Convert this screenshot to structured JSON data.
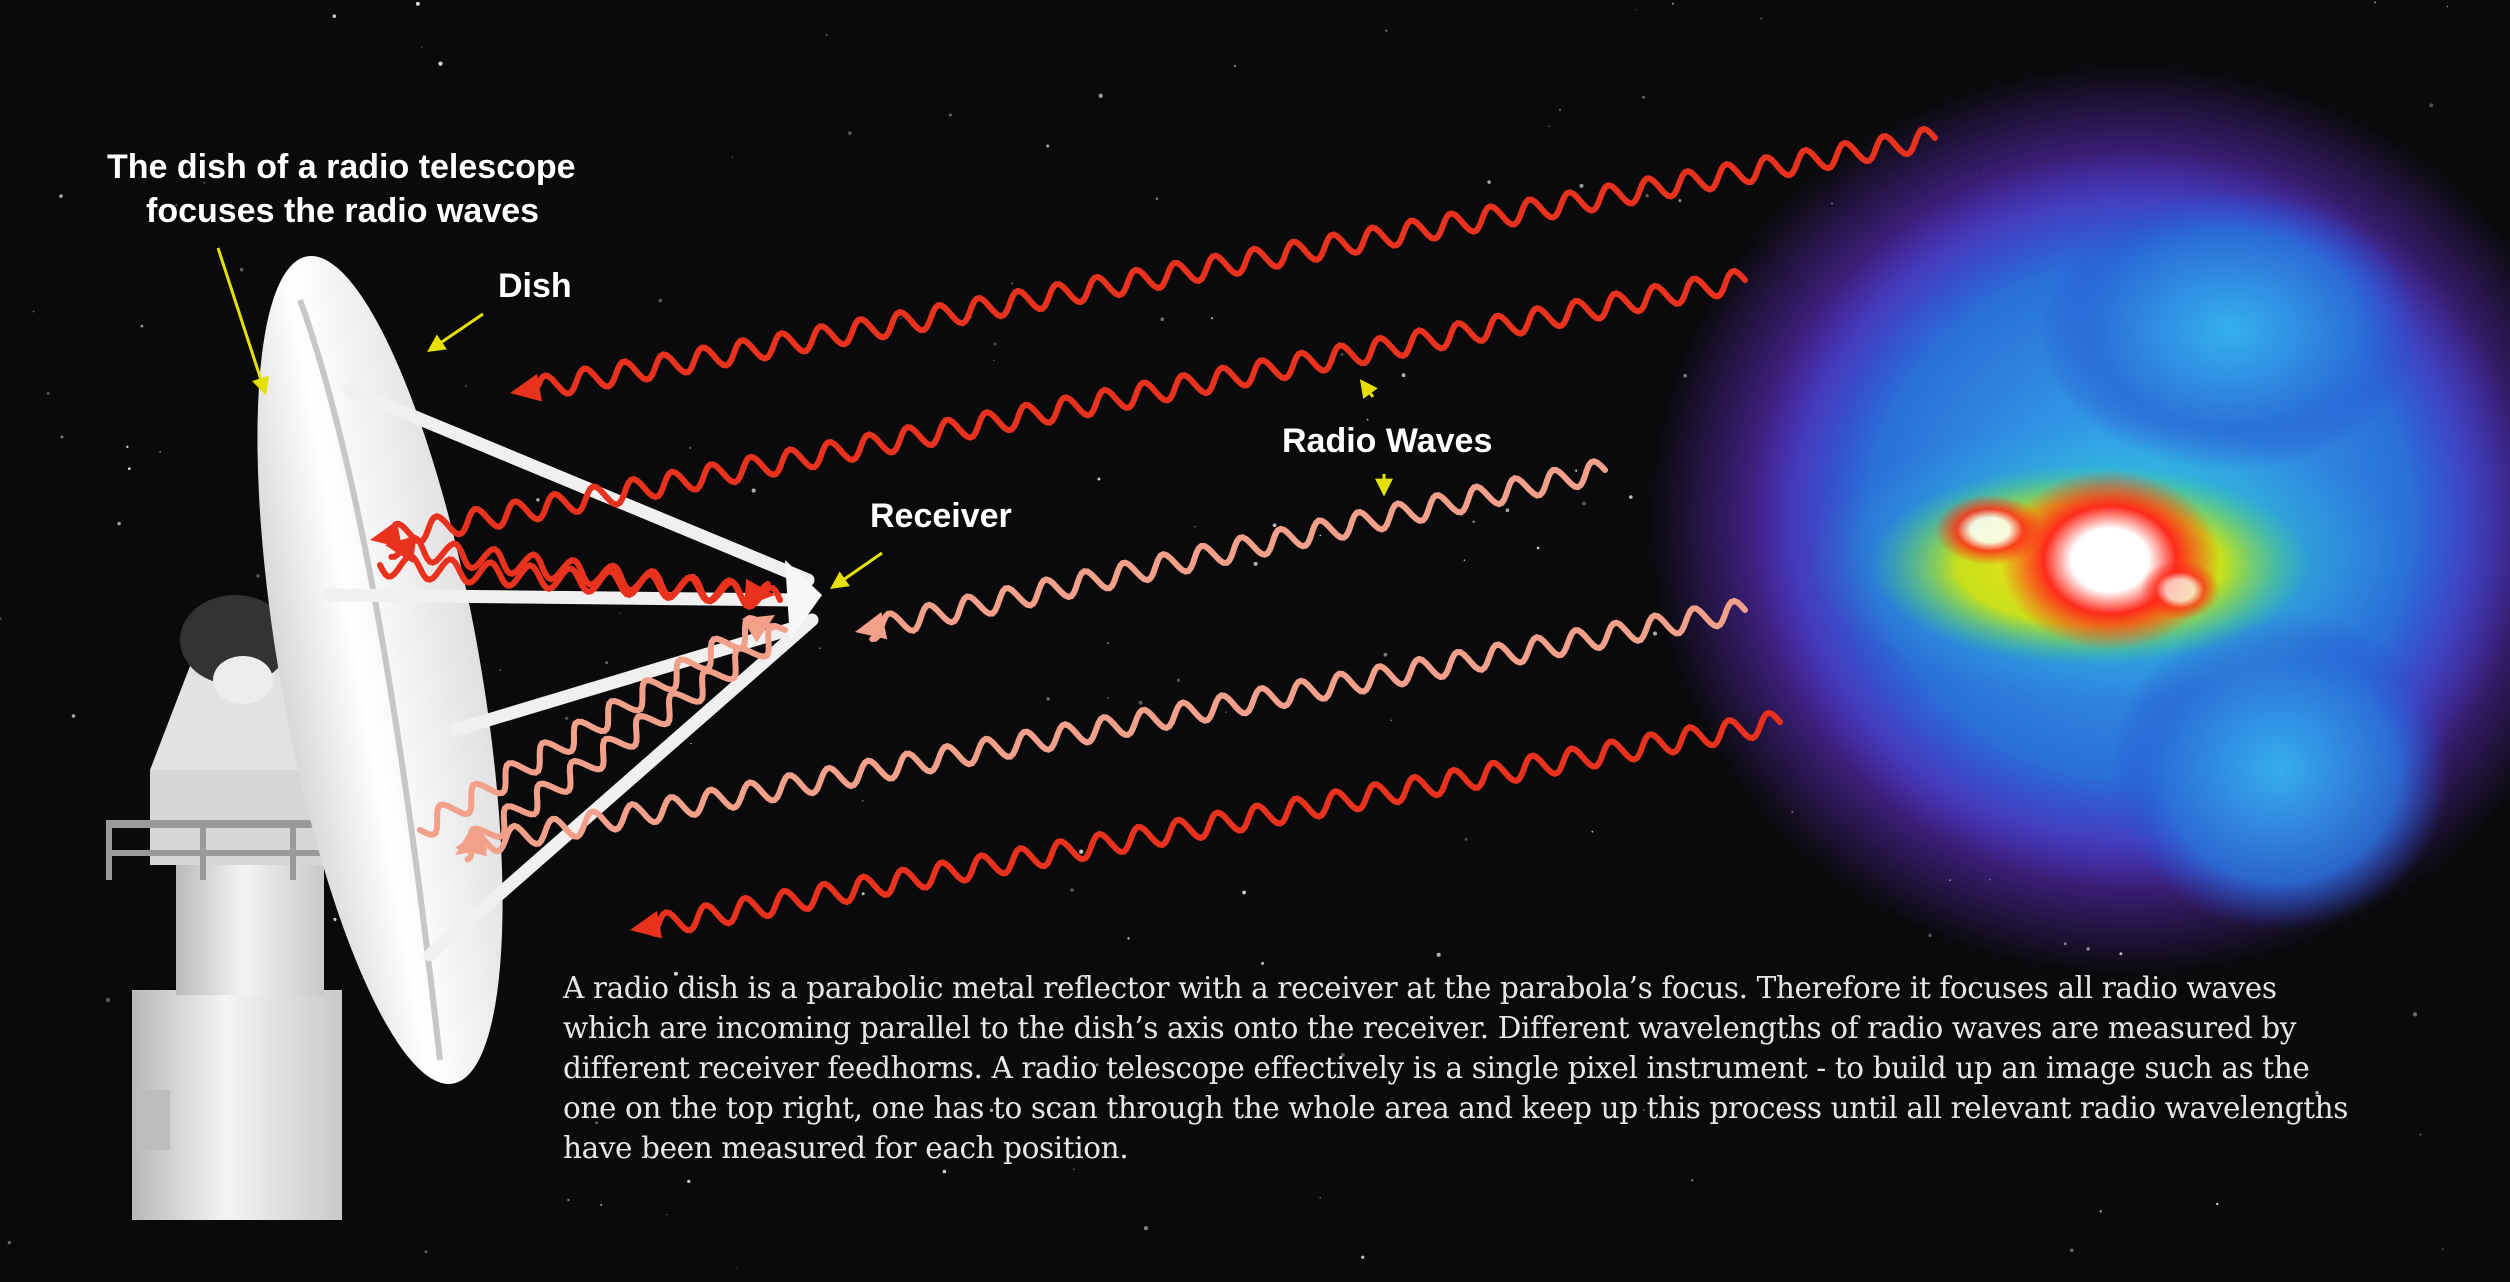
{
  "labels": {
    "dish_note_line1": "The dish of a radio telescope",
    "dish_note_line2": "focuses the radio waves",
    "dish": "Dish",
    "receiver": "Receiver",
    "radio_waves": "Radio Waves"
  },
  "caption": "A radio dish is a parabolic metal reflector with a receiver at the parabola’s focus. Therefore it focuses all radio waves which are incoming parallel to the dish’s axis onto the receiver. Different wavelengths of radio waves are measured by different receiver feedhorns. A radio telescope effectively is a single pixel instrument - to build up an image such as the one on the top right, one has to scan through the whole area and keep up this process until all relevant radio wavelengths have been measured for each position.",
  "colors": {
    "background": "#0a0a0c",
    "wave_red": "#e8321e",
    "wave_pink": "#f2a08a",
    "annotation_arrow": "#e6e000",
    "dish": "#f2f2f2"
  }
}
